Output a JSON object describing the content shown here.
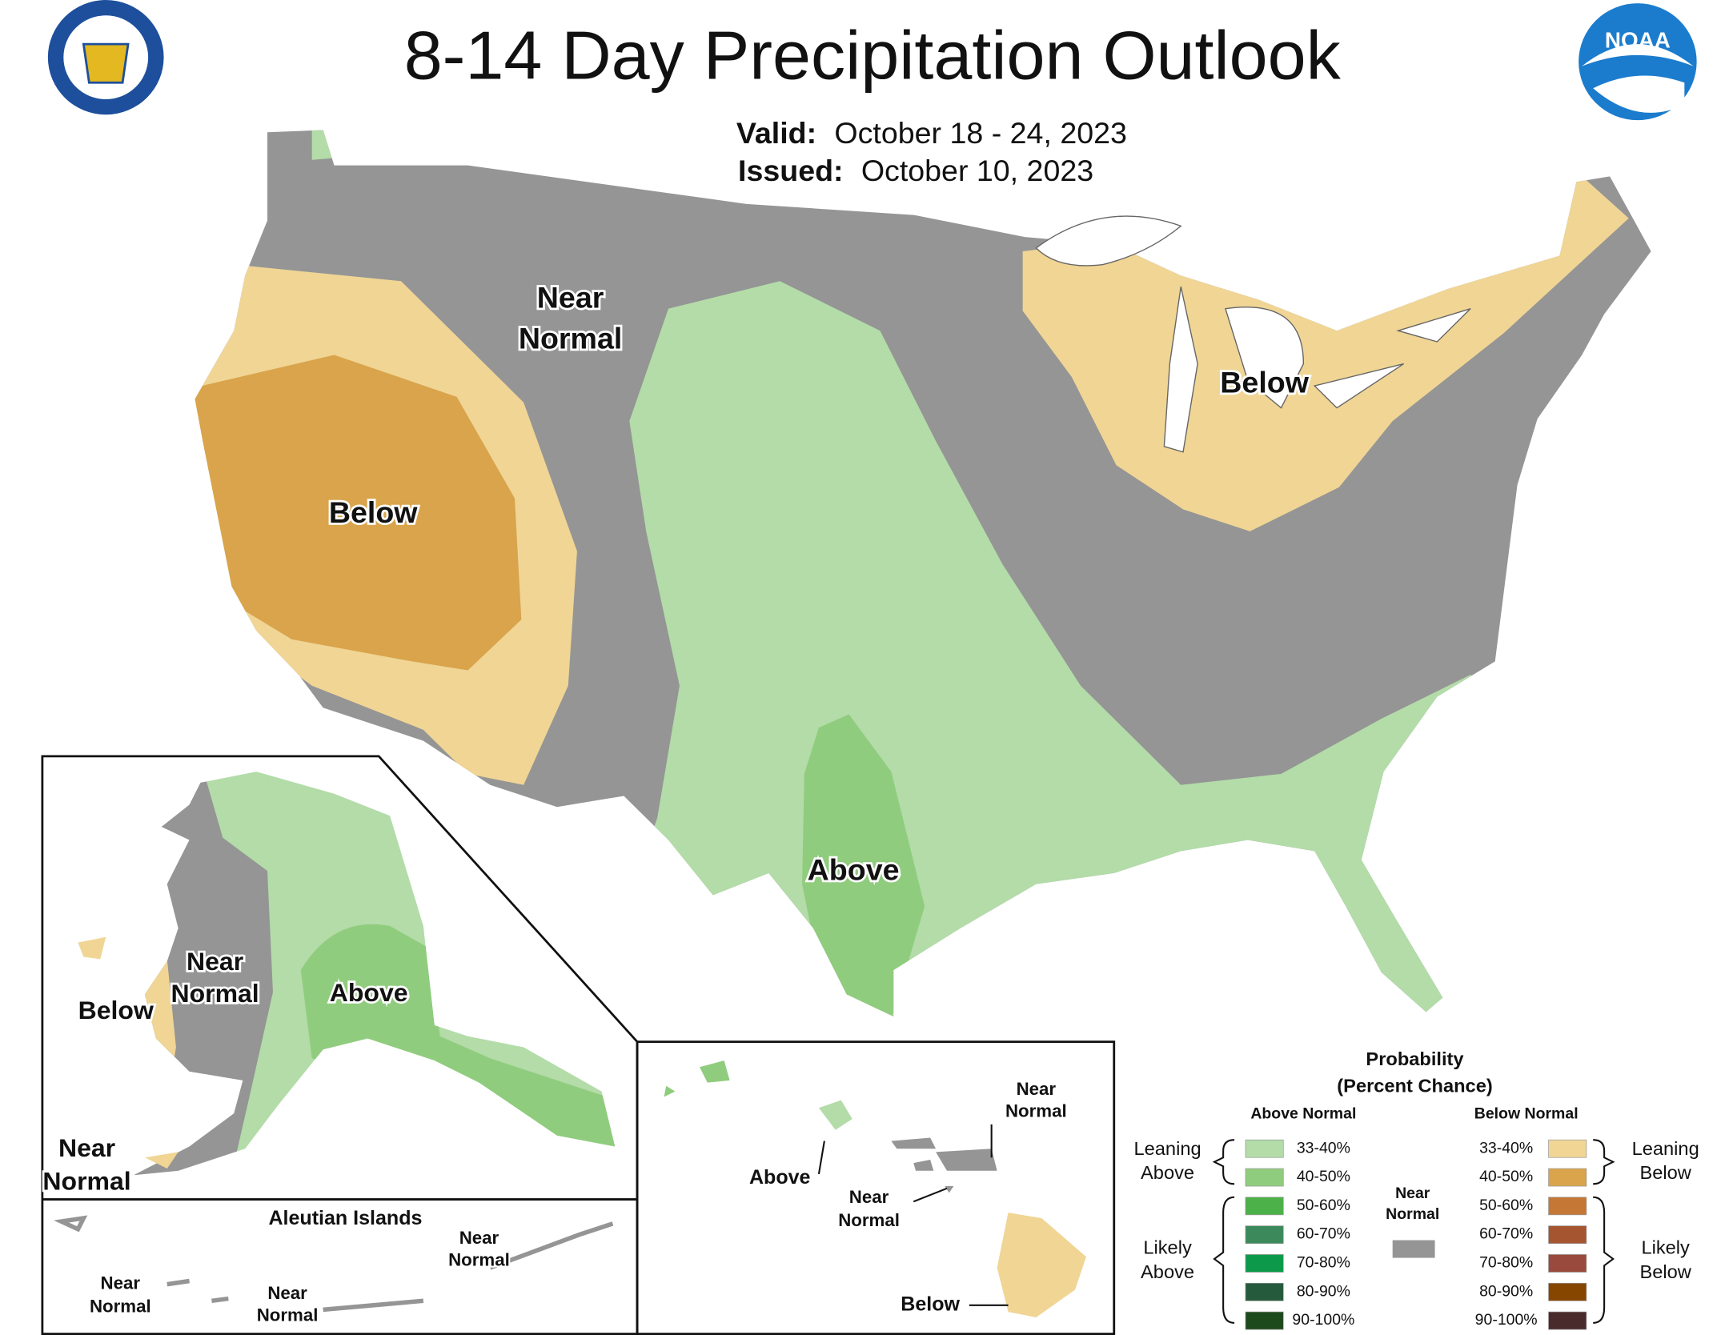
{
  "header": {
    "title": "8-14 Day Precipitation Outlook",
    "valid_label": "Valid:",
    "valid": "October 18 - 24, 2023",
    "issued_label": "Issued:",
    "issued": "October 10, 2023",
    "noaa_logo": "NOAA"
  },
  "conus_labels": [
    {
      "lines": [
        "Near",
        "Normal"
      ]
    },
    {
      "lines": [
        "Below"
      ]
    },
    {
      "lines": [
        "Below"
      ]
    },
    {
      "lines": [
        "Above"
      ]
    }
  ],
  "alaska_labels": [
    {
      "lines": [
        "Near",
        "Normal"
      ]
    },
    {
      "lines": [
        "Above"
      ]
    },
    {
      "lines": [
        "Below"
      ]
    },
    {
      "lines": [
        "Near",
        "Normal"
      ]
    }
  ],
  "aleutian": {
    "title": "Aleutian Islands",
    "labels": [
      {
        "lines": [
          "Near",
          "Normal"
        ]
      },
      {
        "lines": [
          "Near",
          "Normal"
        ]
      },
      {
        "lines": [
          "Near",
          "Normal"
        ]
      }
    ]
  },
  "hawaii_labels": [
    {
      "lines": [
        "Near",
        "Normal"
      ]
    },
    {
      "lines": [
        "Above"
      ]
    },
    {
      "lines": [
        "Near",
        "Normal"
      ]
    },
    {
      "lines": [
        "Below"
      ]
    }
  ],
  "legend": {
    "title": "Probability",
    "subtitle": "(Percent Chance)",
    "above_header": "Above Normal",
    "below_header": "Below Normal",
    "above": [
      {
        "range": "33-40%",
        "color": "#b3dca8"
      },
      {
        "range": "40-50%",
        "color": "#90cc7e"
      },
      {
        "range": "50-60%",
        "color": "#4cb148"
      },
      {
        "range": "60-70%",
        "color": "#3c8a5c"
      },
      {
        "range": "70-80%",
        "color": "#0c9a4a"
      },
      {
        "range": "80-90%",
        "color": "#255a3c"
      },
      {
        "range": "90-100%",
        "color": "#1d4a1c"
      }
    ],
    "below": [
      {
        "range": "33-40%",
        "color": "#f0d595"
      },
      {
        "range": "40-50%",
        "color": "#d9a44b"
      },
      {
        "range": "50-60%",
        "color": "#c57836"
      },
      {
        "range": "60-70%",
        "color": "#a5552f"
      },
      {
        "range": "70-80%",
        "color": "#9a4a3c"
      },
      {
        "range": "80-90%",
        "color": "#874600"
      },
      {
        "range": "90-100%",
        "color": "#4a2b2b"
      }
    ],
    "near_normal": {
      "lines": [
        "Near",
        "Normal"
      ],
      "color": "#959595"
    },
    "groups": {
      "leaning_above": [
        "Leaning",
        "Above"
      ],
      "likely_above": [
        "Likely",
        "Above"
      ],
      "leaning_below": [
        "Leaning",
        "Below"
      ],
      "likely_below": [
        "Likely",
        "Below"
      ]
    }
  }
}
